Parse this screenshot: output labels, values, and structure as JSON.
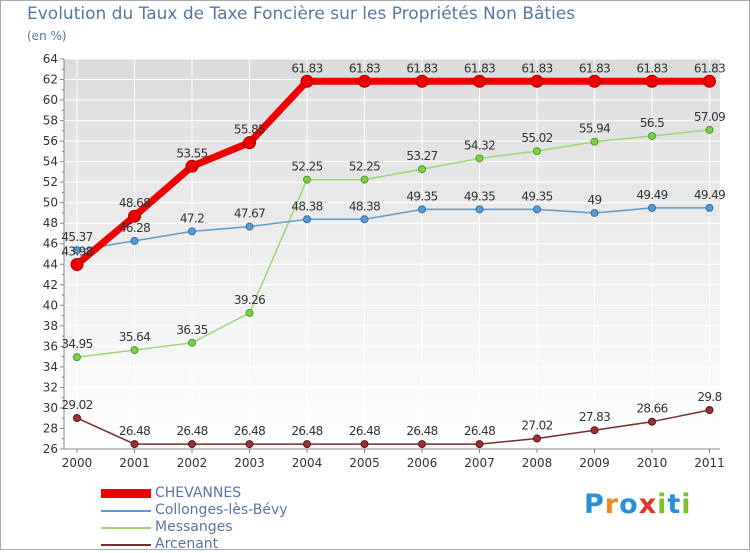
{
  "title": "Evolution du Taux de Taxe Foncière sur les Propriétés Non Bâties",
  "unit": "(en %)",
  "logo": [
    "P",
    "r",
    "o",
    "x",
    "i",
    "t",
    "i"
  ],
  "chart_data": {
    "type": "line",
    "title": "Evolution du Taux de Taxe Foncière sur les Propriétés Non Bâties",
    "ylabel": "(en %)",
    "xlabel": "",
    "ylim": [
      26,
      64
    ],
    "yticks": [
      26,
      28,
      30,
      32,
      34,
      36,
      38,
      40,
      42,
      44,
      46,
      48,
      50,
      52,
      54,
      56,
      58,
      60,
      62,
      64
    ],
    "categories": [
      "2000",
      "2001",
      "2002",
      "2003",
      "2004",
      "2005",
      "2006",
      "2007",
      "2008",
      "2009",
      "2010",
      "2011"
    ],
    "legend_position": "bottom-left",
    "series": [
      {
        "name": "CHEVANNES",
        "color": "#ee0000",
        "values": [
          43.98,
          48.68,
          53.55,
          55.85,
          61.83,
          61.83,
          61.83,
          61.83,
          61.83,
          61.83,
          61.83,
          61.83
        ],
        "labels": [
          "43.98",
          "48.68",
          "53.55",
          "55.85",
          "61.83",
          "61.83",
          "61.83",
          "61.83",
          "61.83",
          "61.83",
          "61.83",
          "61.83"
        ]
      },
      {
        "name": "Collonges-lès-Bévy",
        "color": "#5f9ccc",
        "values": [
          45.37,
          46.28,
          47.2,
          47.67,
          48.38,
          48.38,
          49.35,
          49.35,
          49.35,
          49,
          49.49,
          49.49
        ],
        "labels": [
          "45.37",
          "46.28",
          "47.2",
          "47.67",
          "48.38",
          "48.38",
          "49.35",
          "49.35",
          "49.35",
          "49",
          "49.49",
          "49.49"
        ]
      },
      {
        "name": "Messanges",
        "color": "#9ed67a",
        "values": [
          34.95,
          35.64,
          36.35,
          39.26,
          52.25,
          52.25,
          53.27,
          54.32,
          55.02,
          55.94,
          56.5,
          57.09
        ],
        "labels": [
          "34.95",
          "35.64",
          "36.35",
          "39.26",
          "52.25",
          "52.25",
          "53.27",
          "54.32",
          "55.02",
          "55.94",
          "56.5",
          "57.09"
        ]
      },
      {
        "name": "Arcenant",
        "color": "#7a2d2d",
        "values": [
          29.02,
          26.48,
          26.48,
          26.48,
          26.48,
          26.48,
          26.48,
          26.48,
          27.02,
          27.83,
          28.66,
          29.8
        ],
        "labels": [
          "29.02",
          "26.48",
          "26.48",
          "26.48",
          "26.48",
          "26.48",
          "26.48",
          "26.48",
          "27.02",
          "27.83",
          "28.66",
          "29.8"
        ]
      }
    ]
  }
}
